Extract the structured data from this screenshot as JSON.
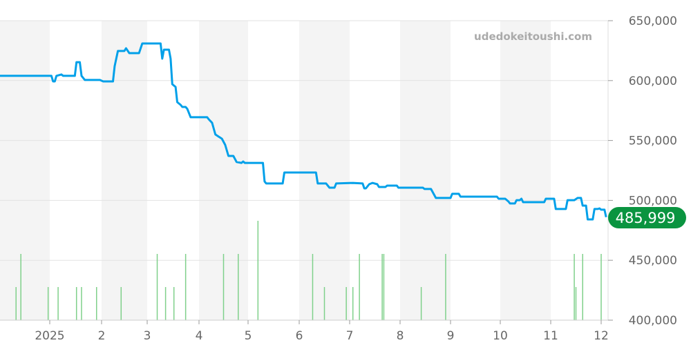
{
  "watermark": "udedokeitoushi.com",
  "chart_data": {
    "type": "line",
    "title": "",
    "xlabel": "",
    "ylabel": "",
    "ylim": [
      400000,
      650000
    ],
    "yticks": [
      "650,000",
      "600,000",
      "550,000",
      "500,000",
      "450,000",
      "400,000"
    ],
    "ytick_values": [
      650000,
      600000,
      550000,
      500000,
      450000,
      400000
    ],
    "xticks": [
      "2025",
      "2",
      "3",
      "4",
      "5",
      "6",
      "7",
      "8",
      "9",
      "10",
      "11",
      "12"
    ],
    "grid": true,
    "alternating_month_shading": true,
    "last_value_label": "485,999",
    "colors": {
      "line": "#00a0e9",
      "volume": "#7fd08a",
      "last_badge": "#0a9440",
      "shade": "#f4f4f4"
    },
    "series": [
      {
        "points": [
          [
            "2024-12-01",
            604000
          ],
          [
            "2025-01-02",
            604000
          ],
          [
            "2025-01-03",
            599300
          ],
          [
            "2025-01-04",
            599300
          ],
          [
            "2025-01-05",
            604000
          ],
          [
            "2025-01-08",
            605100
          ],
          [
            "2025-01-09",
            604000
          ],
          [
            "2025-01-16",
            604000
          ],
          [
            "2025-01-17",
            615400
          ],
          [
            "2025-01-19",
            615400
          ],
          [
            "2025-01-20",
            604000
          ],
          [
            "2025-01-22",
            600500
          ],
          [
            "2025-01-31",
            600500
          ],
          [
            "2025-02-02",
            599300
          ],
          [
            "2025-02-08",
            599300
          ],
          [
            "2025-02-09",
            612000
          ],
          [
            "2025-02-11",
            624700
          ],
          [
            "2025-02-15",
            624700
          ],
          [
            "2025-02-16",
            627000
          ],
          [
            "2025-02-18",
            622900
          ],
          [
            "2025-02-24",
            622900
          ],
          [
            "2025-02-26",
            631000
          ],
          [
            "2025-03-09",
            631000
          ],
          [
            "2025-03-10",
            618300
          ],
          [
            "2025-03-11",
            625800
          ],
          [
            "2025-03-14",
            625800
          ],
          [
            "2025-03-15",
            618300
          ],
          [
            "2025-03-16",
            597000
          ],
          [
            "2025-03-18",
            594700
          ],
          [
            "2025-03-19",
            582000
          ],
          [
            "2025-03-21",
            579700
          ],
          [
            "2025-03-22",
            578000
          ],
          [
            "2025-03-24",
            578000
          ],
          [
            "2025-03-25",
            576300
          ],
          [
            "2025-03-27",
            569400
          ],
          [
            "2025-04-06",
            569400
          ],
          [
            "2025-04-07",
            567600
          ],
          [
            "2025-04-09",
            564800
          ],
          [
            "2025-04-11",
            555000
          ],
          [
            "2025-04-13",
            553200
          ],
          [
            "2025-04-15",
            551500
          ],
          [
            "2025-04-17",
            546300
          ],
          [
            "2025-04-19",
            537100
          ],
          [
            "2025-04-22",
            537100
          ],
          [
            "2025-04-24",
            532000
          ],
          [
            "2025-04-27",
            531300
          ],
          [
            "2025-04-28",
            532500
          ],
          [
            "2025-04-29",
            531300
          ],
          [
            "2025-05-10",
            531300
          ],
          [
            "2025-05-11",
            515800
          ],
          [
            "2025-05-12",
            514100
          ],
          [
            "2025-05-22",
            514100
          ],
          [
            "2025-05-23",
            523300
          ],
          [
            "2025-06-11",
            523300
          ],
          [
            "2025-06-12",
            514100
          ],
          [
            "2025-06-17",
            514100
          ],
          [
            "2025-06-19",
            510600
          ],
          [
            "2025-06-22",
            510600
          ],
          [
            "2025-06-23",
            514100
          ],
          [
            "2025-07-03",
            514600
          ],
          [
            "2025-07-09",
            514100
          ],
          [
            "2025-07-10",
            510000
          ],
          [
            "2025-07-11",
            510000
          ],
          [
            "2025-07-13",
            513500
          ],
          [
            "2025-07-15",
            514600
          ],
          [
            "2025-07-18",
            513500
          ],
          [
            "2025-07-19",
            511200
          ],
          [
            "2025-07-23",
            511200
          ],
          [
            "2025-07-24",
            512300
          ],
          [
            "2025-07-30",
            512300
          ],
          [
            "2025-07-31",
            510600
          ],
          [
            "2025-08-15",
            510600
          ],
          [
            "2025-08-16",
            509500
          ],
          [
            "2025-08-20",
            509500
          ],
          [
            "2025-08-23",
            502000
          ],
          [
            "2025-09-01",
            502000
          ],
          [
            "2025-09-02",
            505500
          ],
          [
            "2025-09-06",
            505500
          ],
          [
            "2025-09-07",
            503100
          ],
          [
            "2025-09-29",
            503100
          ],
          [
            "2025-09-30",
            501400
          ],
          [
            "2025-10-04",
            501400
          ],
          [
            "2025-10-06",
            499100
          ],
          [
            "2025-10-07",
            497400
          ],
          [
            "2025-10-10",
            497400
          ],
          [
            "2025-10-11",
            500200
          ],
          [
            "2025-10-13",
            500200
          ],
          [
            "2025-10-14",
            501400
          ],
          [
            "2025-10-15",
            498500
          ],
          [
            "2025-10-28",
            498500
          ],
          [
            "2025-10-29",
            501400
          ],
          [
            "2025-11-03",
            501400
          ],
          [
            "2025-11-04",
            492800
          ],
          [
            "2025-11-10",
            492800
          ],
          [
            "2025-11-11",
            500200
          ],
          [
            "2025-11-15",
            500200
          ],
          [
            "2025-11-17",
            502000
          ],
          [
            "2025-11-19",
            502000
          ],
          [
            "2025-11-20",
            495600
          ],
          [
            "2025-11-22",
            495600
          ],
          [
            "2025-11-23",
            484100
          ],
          [
            "2025-11-26",
            484100
          ],
          [
            "2025-11-27",
            492800
          ],
          [
            "2025-11-29",
            492800
          ],
          [
            "2025-11-30",
            493300
          ],
          [
            "2025-12-01",
            492200
          ],
          [
            "2025-12-03",
            492200
          ],
          [
            "2025-12-04",
            485999
          ]
        ]
      }
    ],
    "volume": [
      [
        "2024-12-11",
        1
      ],
      [
        "2024-12-14",
        2
      ],
      [
        "2024-12-31",
        1
      ],
      [
        "2025-01-06",
        1
      ],
      [
        "2025-01-17",
        1
      ],
      [
        "2025-01-20",
        1
      ],
      [
        "2025-01-29",
        1
      ],
      [
        "2025-02-13",
        1
      ],
      [
        "2025-03-07",
        2
      ],
      [
        "2025-03-12",
        1
      ],
      [
        "2025-03-17",
        1
      ],
      [
        "2025-03-24",
        2
      ],
      [
        "2025-04-16",
        2
      ],
      [
        "2025-04-25",
        2
      ],
      [
        "2025-05-07",
        3
      ],
      [
        "2025-06-09",
        2
      ],
      [
        "2025-06-16",
        1
      ],
      [
        "2025-06-29",
        1
      ],
      [
        "2025-07-03",
        1
      ],
      [
        "2025-07-07",
        2
      ],
      [
        "2025-07-21",
        2
      ],
      [
        "2025-07-22",
        2
      ],
      [
        "2025-08-14",
        1
      ],
      [
        "2025-08-29",
        2
      ],
      [
        "2025-11-15",
        2
      ],
      [
        "2025-11-16",
        1
      ],
      [
        "2025-11-20",
        2
      ],
      [
        "2025-12-01",
        2
      ]
    ]
  }
}
